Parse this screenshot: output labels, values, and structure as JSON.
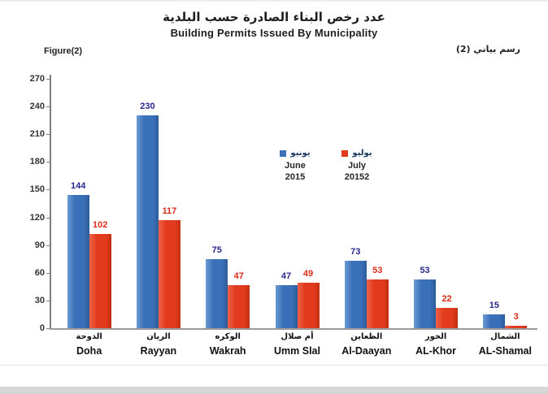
{
  "page": {
    "title_ar": "عدد رخص البناء الصادرة حسب البلدية",
    "title_en": "Building Permits Issued By Municipality",
    "figure_label": "Figure(2)",
    "figure_label_ar": "رسم بياني (2)"
  },
  "chart_data": {
    "type": "bar",
    "title": "Building Permits Issued By Municipality",
    "title_ar": "عدد رخص البناء الصادرة حسب البلدية",
    "categories": [
      "Doha",
      "Rayyan",
      "Wakrah",
      "Umm Slal",
      "Al-Daayan",
      "AL-Khor",
      "AL-Shamal"
    ],
    "categories_ar": [
      "الدوحة",
      "الريان",
      "الوكره",
      "أم صلال",
      "الظعاين",
      "الخور",
      "الشمال"
    ],
    "series": [
      {
        "name_ar": "يونيو",
        "name_en": "June",
        "year": "2015",
        "color": "#3a70b8",
        "label_color": "#28288e",
        "values": [
          144,
          230,
          75,
          47,
          73,
          53,
          15
        ]
      },
      {
        "name_ar": "يوليو",
        "name_en": "July",
        "year": "20152",
        "color": "#e23a1d",
        "label_color": "#dd2a18",
        "values": [
          102,
          117,
          47,
          49,
          53,
          22,
          3
        ]
      }
    ],
    "xlabel": "",
    "ylabel": "",
    "ylim": [
      0,
      270
    ],
    "ytick_step": 30,
    "grid": false,
    "legend_position": "inside-plot-center"
  }
}
